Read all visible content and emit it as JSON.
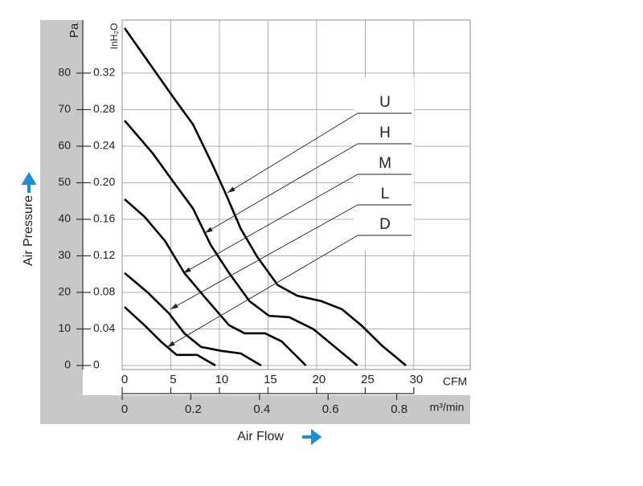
{
  "chart_data": {
    "type": "line",
    "x_label": "Air Flow",
    "y_label": "Air Pressure",
    "y_unit": "Pa",
    "y2_unit": "InH₂O",
    "x_unit": "CFM",
    "x2_unit": "m³/min",
    "xlim": [
      0,
      35.8
    ],
    "xticks": [
      0,
      5,
      10,
      15,
      20,
      25,
      30
    ],
    "x2lim": [
      0,
      1.014
    ],
    "x2ticks": [
      0,
      0.2,
      0.4,
      0.6,
      0.8
    ],
    "ylim": [
      0,
      94.5
    ],
    "yticks": [
      0,
      10,
      20,
      30,
      40,
      50,
      60,
      70,
      80
    ],
    "y2lim": [
      0,
      0.378
    ],
    "y2ticks": [
      0,
      0.04,
      0.08,
      0.12,
      0.16,
      {
        "value": 0.2,
        "label": "0.20"
      },
      0.24,
      0.28,
      0.32
    ],
    "grid": true,
    "series": [
      {
        "name": "U",
        "color": "#000000",
        "x": [
          0.25,
          5.2,
          7.3,
          9.3,
          10.6,
          12.2,
          13.9,
          16.0,
          18.0,
          20.5,
          22.6,
          24.6,
          26.7,
          29.2
        ],
        "values": [
          92.3,
          73.6,
          65.9,
          54.9,
          47.3,
          37.4,
          29.7,
          22.0,
          19.1,
          17.6,
          15.4,
          11.0,
          5.5,
          0
        ]
      },
      {
        "name": "H",
        "color": "#000000",
        "x": [
          0.25,
          3.1,
          5.2,
          7.3,
          9.1,
          11.0,
          13.1,
          15.1,
          17.2,
          19.7,
          21.7,
          24.2
        ],
        "values": [
          67.0,
          58.2,
          50.5,
          42.9,
          33.0,
          25.3,
          17.6,
          13.6,
          13.2,
          9.9,
          5.5,
          0
        ]
      },
      {
        "name": "M",
        "color": "#000000",
        "x": [
          0.25,
          2.3,
          4.4,
          6.4,
          8.5,
          11.0,
          12.6,
          14.7,
          16.4,
          18.9
        ],
        "values": [
          45.5,
          40.7,
          34.1,
          25.3,
          18.7,
          11.0,
          8.8,
          8.8,
          6.6,
          0
        ]
      },
      {
        "name": "L",
        "color": "#000000",
        "x": [
          0.25,
          2.7,
          4.8,
          6.4,
          8.1,
          10.2,
          12.2,
          14.3
        ],
        "values": [
          25.3,
          19.8,
          14.3,
          8.8,
          5.1,
          4.0,
          3.3,
          0
        ]
      },
      {
        "name": "D",
        "color": "#000000",
        "x": [
          0.25,
          2.3,
          3.97,
          5.6,
          7.7,
          9.6
        ],
        "values": [
          16.0,
          11.0,
          6.6,
          2.9,
          2.9,
          0
        ]
      }
    ]
  }
}
